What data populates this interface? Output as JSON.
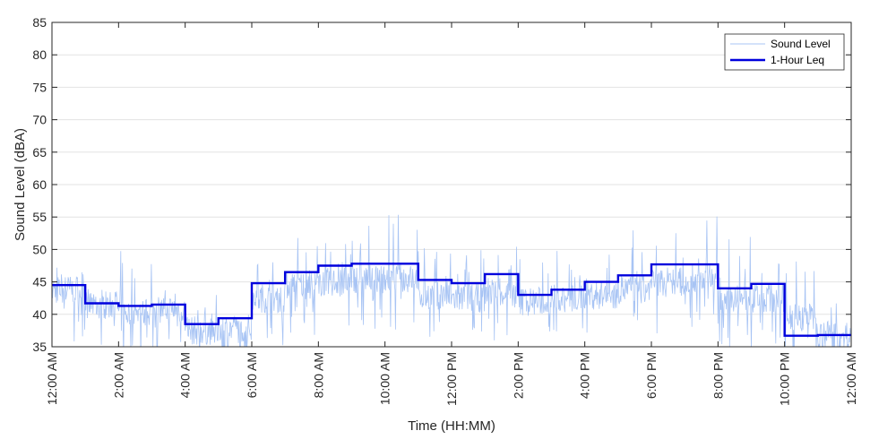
{
  "chart_data": {
    "type": "line",
    "title": "",
    "xlabel": "Time (HH:MM)",
    "ylabel": "Sound Level (dBA)",
    "ylim": [
      35,
      85
    ],
    "xlim_hours": [
      0,
      24
    ],
    "y_ticks": [
      35,
      40,
      45,
      50,
      55,
      60,
      65,
      70,
      75,
      80,
      85
    ],
    "x_ticks": [
      {
        "hour": 0,
        "label": "12:00 AM"
      },
      {
        "hour": 2,
        "label": "2:00 AM"
      },
      {
        "hour": 4,
        "label": "4:00 AM"
      },
      {
        "hour": 6,
        "label": "6:00 AM"
      },
      {
        "hour": 8,
        "label": "8:00 AM"
      },
      {
        "hour": 10,
        "label": "10:00 AM"
      },
      {
        "hour": 12,
        "label": "12:00 PM"
      },
      {
        "hour": 14,
        "label": "2:00 PM"
      },
      {
        "hour": 16,
        "label": "4:00 PM"
      },
      {
        "hour": 18,
        "label": "6:00 PM"
      },
      {
        "hour": 20,
        "label": "8:00 PM"
      },
      {
        "hour": 22,
        "label": "10:00 PM"
      },
      {
        "hour": 24,
        "label": "12:00 AM"
      }
    ],
    "grid": true,
    "legend_position": "top-right",
    "series": [
      {
        "name": "Sound Level",
        "color": "#a8c4f4",
        "style": "thin-noisy",
        "hourly_mean": [
          43.8,
          41.5,
          40.2,
          40.8,
          37.5,
          37.8,
          42.5,
          44.5,
          45.0,
          45.5,
          45.5,
          43.0,
          42.5,
          43.5,
          42.0,
          42.5,
          43.0,
          43.8,
          45.0,
          45.5,
          42.5,
          42.5,
          39.5,
          36.8
        ],
        "hourly_peak": [
          48,
          44,
          50,
          45,
          43,
          39,
          50,
          53,
          52,
          54,
          55.5,
          51,
          50,
          51,
          51,
          50,
          52,
          53,
          55,
          55.5,
          52,
          48,
          49,
          46
        ]
      },
      {
        "name": "1-Hour Leq",
        "color": "#0000dd",
        "style": "step",
        "values": [
          44.5,
          41.7,
          41.3,
          41.5,
          38.5,
          39.4,
          44.8,
          46.5,
          47.5,
          47.8,
          47.8,
          45.3,
          44.8,
          46.2,
          43.0,
          43.8,
          45.0,
          46.0,
          47.7,
          47.7,
          44.0,
          44.7,
          36.7,
          36.8
        ]
      }
    ]
  }
}
